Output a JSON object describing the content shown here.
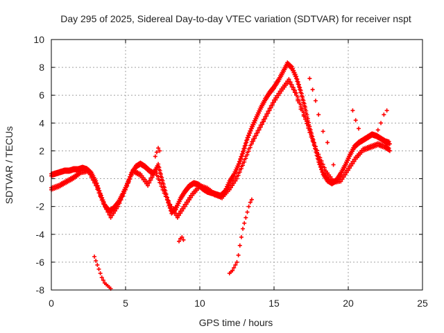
{
  "chart_data": {
    "type": "scatter",
    "title": "Day 295 of 2025, Sidereal Day-to-day VTEC variation (SDTVAR) for receiver nspt",
    "xlabel": "GPS time / hours",
    "ylabel": "SDTVAR / TECUs",
    "xlim": [
      0,
      25
    ],
    "ylim": [
      -8,
      10
    ],
    "xticks": [
      "0",
      "5",
      "10",
      "15",
      "20",
      "25"
    ],
    "yticks": [
      "-8",
      "-6",
      "-4",
      "-2",
      "0",
      "2",
      "4",
      "6",
      "8",
      "10"
    ],
    "grid": true,
    "marker": "+",
    "color": "#ff0000",
    "series": [
      {
        "name": "main",
        "x": [
          0.0,
          0.3,
          0.6,
          0.9,
          1.2,
          1.5,
          1.8,
          2.1,
          2.4,
          2.7,
          3.0,
          3.3,
          3.6,
          3.9,
          4.2,
          4.5,
          4.8,
          5.1,
          5.4,
          5.7,
          6.0,
          6.3,
          6.6,
          6.9,
          7.2,
          7.5,
          7.8,
          8.1,
          8.4,
          8.7,
          9.0,
          9.3,
          9.6,
          9.9,
          10.2,
          10.5,
          10.8,
          11.1,
          11.4,
          11.7,
          12.0,
          12.3,
          12.6,
          12.9,
          13.2,
          13.5,
          13.8,
          14.1,
          14.4,
          14.7,
          15.0,
          15.3,
          15.6,
          15.9,
          16.2,
          16.5,
          16.8,
          17.1,
          17.4,
          17.7,
          18.0,
          18.3,
          18.6,
          18.9,
          19.2,
          19.5,
          19.8,
          20.1,
          20.4,
          20.7,
          21.0,
          21.3,
          21.6,
          21.9,
          22.2,
          22.5,
          22.8
        ],
        "y": [
          0.2,
          0.3,
          0.4,
          0.5,
          0.5,
          0.6,
          0.6,
          0.7,
          0.6,
          0.3,
          -0.3,
          -1.2,
          -2.0,
          -2.4,
          -2.2,
          -1.8,
          -1.2,
          -0.5,
          0.3,
          0.8,
          1.0,
          0.8,
          0.5,
          0.3,
          0.9,
          -0.3,
          -1.5,
          -2.5,
          -2.2,
          -1.5,
          -1.0,
          -0.6,
          -0.4,
          -0.5,
          -0.8,
          -1.0,
          -1.1,
          -1.2,
          -1.3,
          -1.0,
          -0.3,
          0.2,
          0.9,
          1.8,
          2.8,
          3.6,
          4.3,
          5.0,
          5.6,
          6.1,
          6.5,
          7.0,
          7.6,
          8.2,
          7.9,
          7.2,
          6.2,
          5.0,
          3.6,
          2.4,
          1.2,
          0.3,
          -0.2,
          -0.4,
          -0.2,
          0.3,
          0.9,
          1.6,
          2.2,
          2.5,
          2.7,
          2.9,
          3.1,
          3.0,
          2.8,
          2.6,
          2.5
        ]
      },
      {
        "name": "secondary",
        "x": [
          0.0,
          0.5,
          1.0,
          1.5,
          2.0,
          2.5,
          3.0,
          3.5,
          4.0,
          4.5,
          5.0,
          5.5,
          6.0,
          6.5,
          7.0,
          7.5,
          8.0,
          8.5,
          9.0,
          9.5,
          10.0,
          10.5,
          11.0,
          11.5,
          12.0,
          12.5,
          13.0,
          13.5,
          14.0,
          14.5,
          15.0,
          15.5,
          16.0,
          16.5,
          17.0,
          17.5,
          18.0,
          18.5,
          19.0,
          19.5,
          20.0,
          20.5,
          21.0,
          21.5,
          22.0,
          22.5,
          22.8
        ],
        "y": [
          -0.8,
          -0.6,
          -0.3,
          0.0,
          0.4,
          0.5,
          -0.5,
          -1.8,
          -2.8,
          -2.0,
          -0.8,
          0.5,
          0.2,
          -0.5,
          0.5,
          -0.8,
          -2.0,
          -2.8,
          -2.0,
          -1.2,
          -0.6,
          -0.8,
          -1.2,
          -1.4,
          -0.8,
          0.0,
          1.2,
          2.5,
          3.5,
          4.5,
          5.5,
          6.3,
          7.0,
          6.0,
          4.6,
          3.0,
          1.6,
          0.4,
          -0.3,
          -0.2,
          0.6,
          1.4,
          2.0,
          2.2,
          2.4,
          2.2,
          2.0
        ]
      },
      {
        "name": "spikes",
        "x": [
          2.9,
          3.0,
          3.1,
          3.2,
          3.3,
          3.4,
          3.5,
          3.6,
          3.7,
          3.8,
          3.9,
          4.0,
          7.0,
          7.1,
          7.2,
          7.3,
          8.6,
          8.7,
          8.8,
          8.9,
          12.0,
          12.1,
          12.2,
          12.3,
          12.4,
          12.5,
          12.6,
          12.7,
          12.8,
          12.9,
          13.0,
          13.1,
          13.2,
          13.3,
          13.4,
          13.5,
          16.4,
          16.6,
          16.8,
          17.0,
          17.4,
          17.6,
          17.8,
          18.0,
          18.3,
          18.6,
          19.0,
          20.3,
          20.5,
          20.7,
          22.0,
          22.2,
          22.4,
          22.6
        ],
        "y": [
          -5.6,
          -5.9,
          -6.2,
          -6.5,
          -6.8,
          -7.1,
          -7.3,
          -7.5,
          -7.6,
          -7.7,
          -7.8,
          -7.9,
          1.6,
          1.9,
          2.2,
          2.0,
          -4.5,
          -4.3,
          -4.2,
          -4.4,
          -6.8,
          -6.7,
          -6.6,
          -6.4,
          -6.2,
          -6.0,
          -5.5,
          -4.8,
          -4.2,
          -3.6,
          -3.2,
          -2.8,
          -2.4,
          -2.0,
          -1.7,
          -1.5,
          6.2,
          5.6,
          5.0,
          4.5,
          7.2,
          6.4,
          5.6,
          4.6,
          3.4,
          2.6,
          1.0,
          4.9,
          4.2,
          3.6,
          3.5,
          4.0,
          4.6,
          4.9
        ]
      }
    ]
  }
}
